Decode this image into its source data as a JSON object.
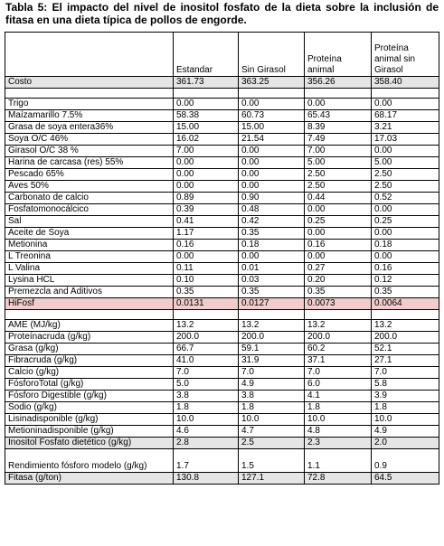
{
  "caption": "Tabla 5: El impacto del nivel de inositol fosfato de la dieta sobre la inclusión de fitasa en una dieta típica de pollos de engorde.",
  "headers": [
    "",
    "Estandar",
    "Sin Girasol",
    "Proteína animal",
    "Proteína animal sin Girasol"
  ],
  "row_costo": {
    "label": "Costo",
    "values": [
      "361.73",
      "363.25",
      "356.26",
      "358.40"
    ],
    "bg": "#e5e5e5"
  },
  "ingredients": [
    {
      "label": "Trigo",
      "values": [
        "0.00",
        "0.00",
        "0.00",
        "0.00"
      ]
    },
    {
      "label": "Maízamarillo 7.5%",
      "values": [
        "58.38",
        "60.73",
        "65.43",
        "68.17"
      ]
    },
    {
      "label": "Grasa de soya entera36%",
      "values": [
        "15.00",
        "15.00",
        "8.39",
        "3.21"
      ]
    },
    {
      "label": "Soya O/C 46%",
      "values": [
        "16.02",
        "21.54",
        "7.49",
        "17.03"
      ]
    },
    {
      "label": "Girasol O/C 38 %",
      "values": [
        "7.00",
        "0.00",
        "7.00",
        "0.00"
      ]
    },
    {
      "label": "Harina de carcasa (res) 55%",
      "values": [
        "0.00",
        "0.00",
        "5.00",
        "5.00"
      ]
    },
    {
      "label": "Pescado 65%",
      "values": [
        "0.00",
        "0.00",
        "2.50",
        "2.50"
      ]
    },
    {
      "label": "Aves 50%",
      "values": [
        "0.00",
        "0.00",
        "2.50",
        "2.50"
      ]
    },
    {
      "label": "Carbonato de calcio",
      "values": [
        "0.89",
        "0.90",
        "0.44",
        "0.52"
      ]
    },
    {
      "label": "Fosfatomonocálcico",
      "values": [
        "0.39",
        "0.48",
        "0.00",
        "0.00"
      ]
    },
    {
      "label": "Sal",
      "values": [
        "0.41",
        "0.42",
        "0.25",
        "0.25"
      ]
    },
    {
      "label": "Aceite de Soya",
      "values": [
        "1.17",
        "0.35",
        "0.00",
        "0.00"
      ]
    },
    {
      "label": "Metionina",
      "values": [
        "0.16",
        "0.18",
        "0.16",
        "0.18"
      ]
    },
    {
      "label": "L Treonina",
      "values": [
        "0.00",
        "0.00",
        "0.00",
        "0.00"
      ]
    },
    {
      "label": "L Valina",
      "values": [
        "0.11",
        "0.01",
        "0.27",
        "0.16"
      ]
    },
    {
      "label": "Lysina HCL",
      "values": [
        "0.10",
        "0.03",
        "0.20",
        "0.12"
      ]
    },
    {
      "label": "Premezcla and Aditivos",
      "values": [
        "0.35",
        "0.35",
        "0.35",
        "0.35"
      ]
    }
  ],
  "row_hifosf": {
    "label": "HiFosf",
    "values": [
      "0.0131",
      "0.0127",
      "0.0073",
      "0.0064"
    ],
    "bg": "#f2cccc"
  },
  "nutrients": [
    {
      "label": "AME (MJ/kg)",
      "values": [
        "13.2",
        "13.2",
        "13.2",
        "13.2"
      ]
    },
    {
      "label": "Proteínacruda (g/kg)",
      "values": [
        "200.0",
        "200.0",
        "200.0",
        "200.0"
      ]
    },
    {
      "label": "Grasa (g/kg)",
      "values": [
        "66.7",
        "59.1",
        "60.2",
        "52.1"
      ]
    },
    {
      "label": "Fibracruda (g/kg)",
      "values": [
        "41.0",
        "31.9",
        "37.1",
        "27.1"
      ]
    },
    {
      "label": "Calcio (g/kg)",
      "values": [
        "7.0",
        "7.0",
        "7.0",
        "7.0"
      ]
    },
    {
      "label": "FósforoTotal (g/kg)",
      "values": [
        "5.0",
        "4.9",
        "6.0",
        "5.8"
      ]
    },
    {
      "label": "Fósforo Digestible (g/kg)",
      "values": [
        "3.8",
        "3.8",
        "4.1",
        "3.9"
      ]
    },
    {
      "label": "Sodio (g/kg)",
      "values": [
        "1.8",
        "1.8",
        "1.8",
        "1.8"
      ]
    },
    {
      "label": "Lisinadisponible (g/kg)",
      "values": [
        "10.0",
        "10.0",
        "10.0",
        "10.0"
      ]
    },
    {
      "label": "Metioninadisponible (g/kg)",
      "values": [
        "4.6",
        "4.7",
        "4.8",
        "4.9"
      ]
    },
    {
      "label": "Inositol Fosfato dietético (g/kg)",
      "values": [
        "2.8",
        "2.5",
        "2.3",
        "2.0"
      ],
      "shade": true
    }
  ],
  "row_rendimiento": {
    "label": "Rendimiento fósforo modelo (g/kg)",
    "values": [
      "1.7",
      "1.5",
      "1.1",
      "0.9"
    ]
  },
  "row_fitasa": {
    "label": "Fitasa (g/ton)",
    "values": [
      "130.8",
      "127.1",
      "72.8",
      "64.5"
    ]
  }
}
